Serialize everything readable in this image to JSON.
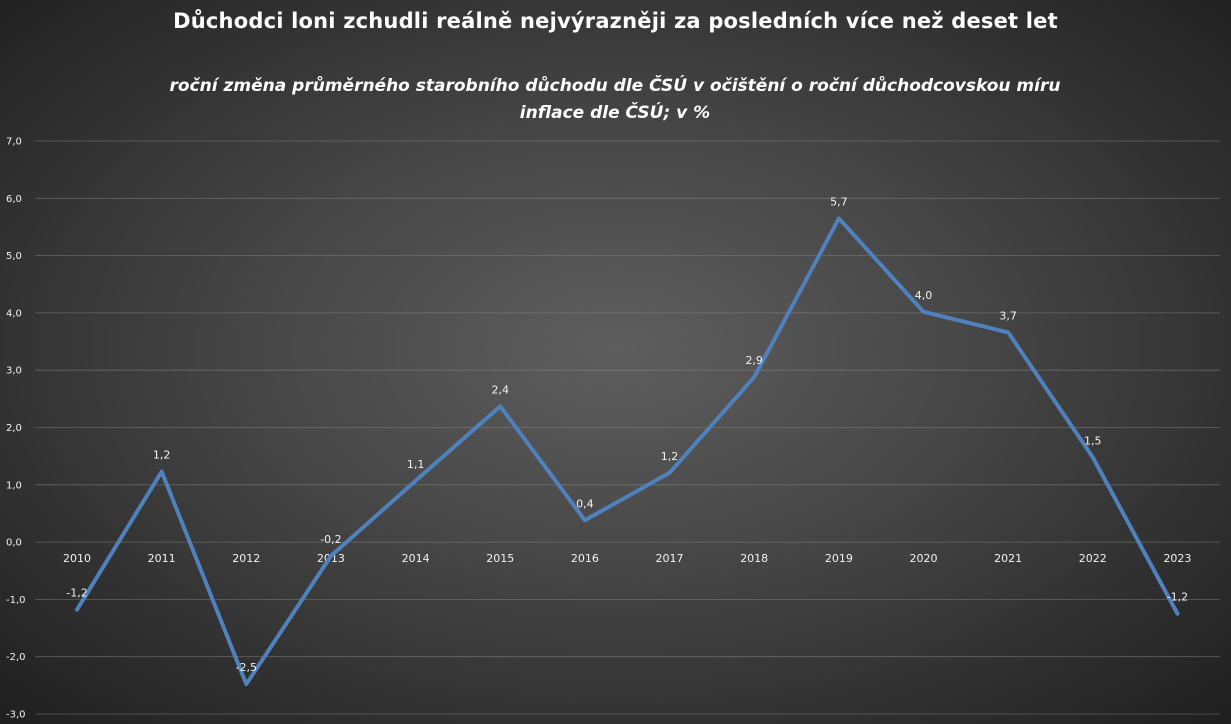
{
  "title": "Důchodci loni zchudli reálně nejvýrazněji za posledních více než deset let",
  "subtitle_lines": [
    "roční změna průměrného starobního důchodu dle ČSÚ v očištění o roční důchodcovskou míru",
    "inflace dle ČSÚ; v %"
  ],
  "chart_data": {
    "type": "line",
    "x": [
      "2010",
      "2011",
      "2012",
      "2013",
      "2014",
      "2015",
      "2016",
      "2017",
      "2018",
      "2019",
      "2020",
      "2021",
      "2022",
      "2023"
    ],
    "values": [
      -1.18,
      1.23,
      -2.48,
      -0.24,
      1.07,
      2.37,
      0.38,
      1.21,
      2.88,
      5.65,
      4.02,
      3.66,
      1.48,
      -1.25
    ],
    "data_labels": [
      "-1,2",
      "1,2",
      "-2,5",
      "-0,2",
      "1,1",
      "2,4",
      "0,4",
      "1,2",
      "2,9",
      "5,7",
      "4,0",
      "3,7",
      "1,5",
      "-1,2"
    ],
    "yticks": [
      "7,0",
      "6,0",
      "5,0",
      "4,0",
      "3,0",
      "2,0",
      "1,0",
      "0,0",
      "-1,0",
      "-2,0",
      "-3,0"
    ],
    "ylim": [
      -3,
      7
    ],
    "grid": true,
    "legend": "none",
    "line_color": "#4f81bd"
  }
}
